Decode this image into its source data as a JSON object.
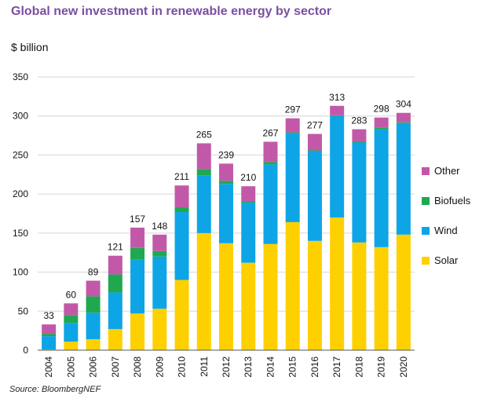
{
  "title": "Global new investment in renewable energy by sector",
  "unit": "$ billion",
  "source": "Source: BloombergNEF",
  "chart_data": {
    "type": "bar",
    "stacked": true,
    "categories": [
      "2004",
      "2005",
      "2006",
      "2007",
      "2008",
      "2009",
      "2010",
      "2011",
      "2012",
      "2013",
      "2014",
      "2015",
      "2016",
      "2017",
      "2018",
      "2019",
      "2020"
    ],
    "series": [
      {
        "name": "Solar",
        "color": "#ffd000",
        "values": [
          1,
          11,
          14,
          27,
          47,
          53,
          90,
          150,
          137,
          112,
          136,
          164,
          140,
          170,
          138,
          132,
          148
        ]
      },
      {
        "name": "Wind",
        "color": "#0ea5e6",
        "values": [
          17,
          24,
          34,
          47,
          69,
          67,
          87,
          74,
          76,
          77,
          102,
          114,
          115,
          130,
          128,
          151,
          143
        ]
      },
      {
        "name": "Biofuels",
        "color": "#1fa84f",
        "values": [
          3,
          10,
          21,
          23,
          15,
          7,
          6,
          8,
          4,
          2,
          3,
          1,
          1,
          1,
          1,
          2,
          1
        ]
      },
      {
        "name": "Other",
        "color": "#c259a8",
        "values": [
          12,
          15,
          20,
          24,
          26,
          21,
          28,
          33,
          22,
          19,
          26,
          18,
          21,
          12,
          16,
          13,
          12
        ]
      }
    ],
    "totals": [
      33,
      60,
      89,
      121,
      157,
      148,
      211,
      265,
      239,
      210,
      267,
      297,
      277,
      313,
      283,
      298,
      304
    ],
    "ylim": [
      0,
      350
    ],
    "yticks": [
      0,
      50,
      100,
      150,
      200,
      250,
      300,
      350
    ],
    "grid": true,
    "legend_position": "right",
    "legend_order": [
      "Other",
      "Biofuels",
      "Wind",
      "Solar"
    ]
  }
}
